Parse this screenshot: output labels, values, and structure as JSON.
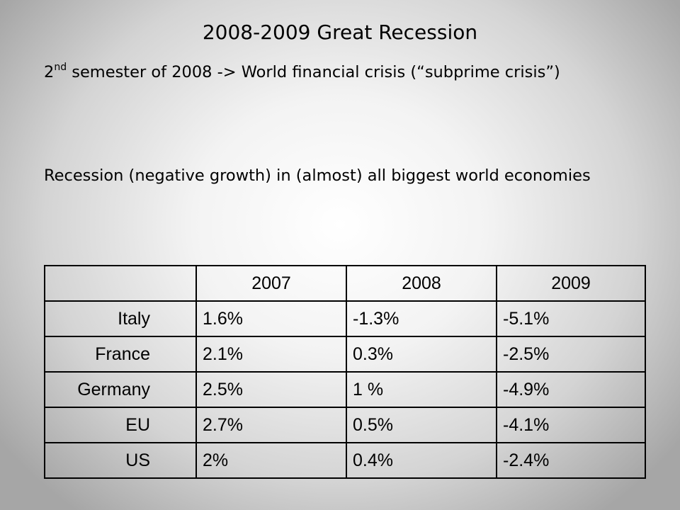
{
  "slide": {
    "title": "2008-2009 Great Recession",
    "bullet_1": {
      "ordinal_base": "2",
      "ordinal_suffix": "nd",
      "text": " semester of 2008 -> World financial crisis (“subprime crisis”)"
    },
    "bullet_2": {
      "text": "Recession (negative growth) in (almost) all biggest world economies"
    }
  },
  "table": {
    "header": [
      "",
      "2007",
      "2008",
      "2009"
    ],
    "rows": [
      {
        "country": "Italy",
        "values": [
          "1.6%",
          "-1.3%",
          "-5.1%"
        ]
      },
      {
        "country": "France",
        "values": [
          "2.1%",
          "0.3%",
          "-2.5%"
        ]
      },
      {
        "country": "Germany",
        "values": [
          "2.5%",
          "1 %",
          "-4.9%"
        ]
      },
      {
        "country": "EU",
        "values": [
          "2.7%",
          "0.5%",
          "-4.1%"
        ]
      },
      {
        "country": "US",
        "values": [
          "2%",
          "0.4%",
          "-2.4%"
        ]
      }
    ]
  }
}
